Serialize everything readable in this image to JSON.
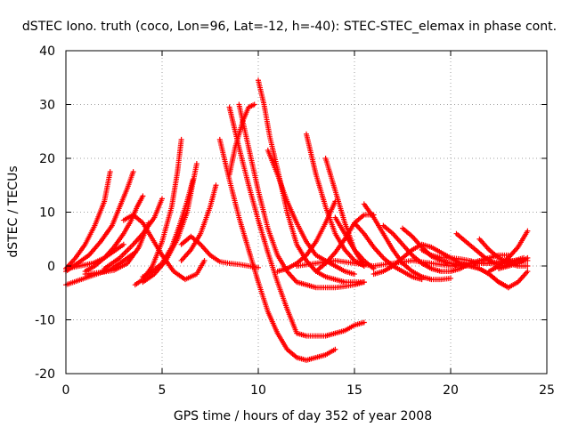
{
  "chart_data": {
    "type": "scatter",
    "title": "dSTEC Iono. truth (coco, Lon=96, Lat=-12, h=-40): STEC-STEC_elemax in phase cont.",
    "xlabel": "GPS time / hours of day 352 of year 2008",
    "ylabel": "dSTEC  / TECUs",
    "xlim": [
      0,
      25
    ],
    "ylim": [
      -20,
      40
    ],
    "xticks": [
      0,
      5,
      10,
      15,
      20,
      25
    ],
    "yticks": [
      -20,
      -10,
      0,
      10,
      20,
      30,
      40
    ],
    "grid": true,
    "marker": "plus",
    "color": "#ff0000",
    "series": [
      {
        "x": [
          0.0,
          0.5,
          1.0,
          1.5,
          2.0,
          2.3
        ],
        "y": [
          -0.5,
          1.5,
          4.0,
          7.5,
          12.0,
          17.5
        ]
      },
      {
        "x": [
          0.0,
          0.6,
          1.2,
          1.8,
          2.4,
          2.8,
          3.2,
          3.5
        ],
        "y": [
          -1.0,
          0.5,
          2.0,
          4.5,
          7.5,
          11.0,
          14.5,
          17.5
        ]
      },
      {
        "x": [
          0.0,
          0.7,
          1.4,
          2.0,
          2.6,
          3.0
        ],
        "y": [
          -0.5,
          0.0,
          0.5,
          1.5,
          3.0,
          4.0
        ]
      },
      {
        "x": [
          1.0,
          1.5,
          2.0,
          2.5,
          3.0,
          3.4,
          3.7,
          4.0
        ],
        "y": [
          -1.0,
          0.0,
          1.5,
          3.5,
          6.0,
          8.5,
          11.0,
          13.0
        ]
      },
      {
        "x": [
          1.0,
          1.8,
          2.5,
          3.2,
          3.8,
          4.3
        ],
        "y": [
          -1.5,
          -1.2,
          -0.8,
          0.5,
          3.5,
          8.0
        ]
      },
      {
        "x": [
          2.0,
          2.8,
          3.5,
          4.0,
          4.6,
          5.0
        ],
        "y": [
          -0.5,
          1.5,
          4.0,
          6.0,
          9.0,
          12.5
        ]
      },
      {
        "x": [
          3.6,
          4.0,
          4.5,
          5.0,
          5.5,
          5.8,
          6.0
        ],
        "y": [
          -3.5,
          -2.5,
          0.0,
          4.5,
          11.0,
          17.5,
          23.5
        ]
      },
      {
        "x": [
          4.0,
          4.5,
          5.0,
          5.5,
          5.9,
          6.3,
          6.6
        ],
        "y": [
          -2.0,
          -1.0,
          0.5,
          3.5,
          7.5,
          12.0,
          16.0
        ]
      },
      {
        "x": [
          4.0,
          4.6,
          5.2,
          5.8,
          6.3,
          6.8
        ],
        "y": [
          -3.0,
          -1.5,
          1.0,
          5.0,
          10.0,
          19.0
        ]
      },
      {
        "x": [
          3.0,
          3.5,
          4.0,
          4.5,
          5.0,
          5.6,
          6.2,
          6.8,
          7.2
        ],
        "y": [
          8.5,
          9.5,
          8.0,
          5.0,
          2.0,
          -1.0,
          -2.5,
          -1.5,
          1.0
        ]
      },
      {
        "x": [
          0.0,
          0.8,
          1.6,
          2.4,
          3.0,
          3.6
        ],
        "y": [
          -3.5,
          -2.5,
          -1.5,
          -0.5,
          1.0,
          2.5
        ]
      },
      {
        "x": [
          6.0,
          6.5,
          7.0,
          7.5,
          8.0,
          8.5,
          9.0,
          9.5,
          10.0
        ],
        "y": [
          4.0,
          5.5,
          4.0,
          2.0,
          0.8,
          0.5,
          0.3,
          0.0,
          -0.3
        ]
      },
      {
        "x": [
          6.0,
          6.5,
          7.0,
          7.5,
          7.8
        ],
        "y": [
          1.0,
          3.0,
          6.0,
          11.0,
          15.0
        ]
      },
      {
        "x": [
          8.0,
          8.5,
          9.0,
          9.5,
          10.0,
          10.5,
          11.0,
          11.5,
          12.0,
          12.5,
          13.0,
          13.5,
          14.0
        ],
        "y": [
          23.5,
          16.0,
          9.0,
          3.0,
          -3.0,
          -8.5,
          -12.5,
          -15.5,
          -17.0,
          -17.5,
          -17.0,
          -16.5,
          -15.5
        ]
      },
      {
        "x": [
          8.5,
          9.0,
          9.5,
          10.0,
          10.5,
          11.0,
          11.5,
          12.0,
          12.5,
          13.0,
          13.5,
          14.0,
          14.5,
          15.0,
          15.5
        ],
        "y": [
          29.5,
          22.0,
          15.0,
          8.5,
          2.5,
          -3.0,
          -8.0,
          -12.5,
          -13.0,
          -13.0,
          -13.0,
          -12.5,
          -12.0,
          -11.0,
          -10.5
        ]
      },
      {
        "x": [
          8.5,
          8.8,
          9.2,
          9.5,
          9.8
        ],
        "y": [
          17.0,
          22.0,
          27.0,
          29.5,
          30.0
        ]
      },
      {
        "x": [
          9.0,
          9.5,
          10.0,
          10.5,
          11.0,
          11.5,
          12.0,
          12.5,
          13.0,
          13.5,
          14.0,
          14.5,
          15.0,
          15.5
        ],
        "y": [
          30.0,
          22.0,
          14.0,
          7.0,
          2.0,
          -1.0,
          -3.0,
          -3.5,
          -4.0,
          -4.0,
          -4.0,
          -3.8,
          -3.5,
          -3.0
        ]
      },
      {
        "x": [
          10.0,
          10.3,
          10.6,
          11.0,
          11.5,
          12.0,
          12.5,
          13.0,
          13.5,
          14.0,
          14.5,
          15.0,
          15.5
        ],
        "y": [
          34.5,
          30.0,
          24.0,
          18.0,
          10.0,
          4.0,
          1.0,
          -1.0,
          -2.0,
          -2.5,
          -3.0,
          -3.0,
          -3.0
        ]
      },
      {
        "x": [
          10.5,
          11.0,
          11.5,
          12.0,
          12.5,
          13.0,
          13.5,
          14.0,
          14.5,
          15.0
        ],
        "y": [
          21.5,
          17.0,
          12.0,
          8.0,
          4.5,
          2.0,
          1.0,
          0.0,
          -1.0,
          -1.5
        ]
      },
      {
        "x": [
          11.0,
          11.5,
          12.0,
          12.5,
          13.0,
          13.5,
          14.0
        ],
        "y": [
          -1.0,
          -0.5,
          0.5,
          2.0,
          4.5,
          8.0,
          12.0
        ]
      },
      {
        "x": [
          12.5,
          13.0,
          13.5,
          14.0,
          14.5,
          15.0,
          15.5
        ],
        "y": [
          24.5,
          17.0,
          11.0,
          6.0,
          3.0,
          1.0,
          0.0
        ]
      },
      {
        "x": [
          13.0,
          13.5,
          14.0,
          14.5,
          15.0,
          15.5,
          16.0
        ],
        "y": [
          -1.0,
          0.5,
          2.5,
          5.0,
          8.0,
          9.5,
          9.5
        ]
      },
      {
        "x": [
          13.5,
          14.0,
          14.5,
          15.0,
          15.5
        ],
        "y": [
          20.0,
          14.0,
          8.0,
          3.0,
          0.0
        ]
      },
      {
        "x": [
          14.0,
          14.5,
          15.0,
          15.5,
          16.0
        ],
        "y": [
          9.0,
          6.0,
          3.0,
          1.0,
          -0.5
        ]
      },
      {
        "x": [
          15.0,
          15.5,
          16.0,
          16.5,
          17.0,
          17.5,
          18.0,
          18.5
        ],
        "y": [
          8.0,
          6.0,
          3.5,
          1.5,
          0.0,
          -1.0,
          -2.0,
          -2.5
        ]
      },
      {
        "x": [
          15.5,
          16.0,
          16.5,
          17.0,
          17.5,
          18.0,
          18.5,
          19.0,
          19.5,
          20.0
        ],
        "y": [
          11.5,
          9.0,
          6.0,
          3.0,
          0.5,
          -1.0,
          -2.0,
          -2.5,
          -2.5,
          -2.3
        ]
      },
      {
        "x": [
          16.5,
          17.0,
          17.5,
          18.0,
          18.5,
          19.0,
          19.5,
          20.0,
          20.5,
          21.0,
          21.5,
          22.0,
          22.5,
          23.0
        ],
        "y": [
          7.5,
          6.0,
          4.0,
          2.0,
          0.5,
          -0.5,
          -1.0,
          -1.0,
          -0.5,
          0.5,
          1.0,
          1.5,
          2.0,
          2.0
        ]
      },
      {
        "x": [
          17.5,
          18.0,
          18.5,
          19.0,
          19.5,
          20.0,
          20.5,
          21.0,
          21.5,
          22.0,
          22.5,
          23.0,
          23.5,
          24.0
        ],
        "y": [
          7.0,
          5.5,
          3.5,
          1.8,
          1.0,
          0.5,
          0.0,
          0.0,
          -0.5,
          -1.5,
          -3.0,
          -4.0,
          -3.0,
          -1.0
        ]
      },
      {
        "x": [
          16.0,
          16.5,
          17.0,
          17.5,
          18.0,
          18.5,
          19.0,
          19.5,
          20.0,
          20.5,
          21.0,
          21.5,
          22.0,
          22.5,
          23.0
        ],
        "y": [
          -1.5,
          -1.0,
          0.0,
          1.5,
          3.0,
          4.0,
          3.5,
          2.5,
          1.5,
          0.5,
          0.0,
          -0.5,
          -1.5,
          -3.0,
          -4.0
        ]
      },
      {
        "x": [
          18.5,
          19.0,
          19.5,
          20.0,
          20.5,
          21.0,
          21.5,
          22.0,
          22.5,
          23.0,
          23.5,
          24.0
        ],
        "y": [
          3.0,
          2.0,
          1.5,
          1.5,
          1.3,
          1.0,
          0.5,
          0.5,
          0.8,
          1.0,
          1.0,
          1.0
        ]
      },
      {
        "x": [
          20.3,
          20.8,
          21.3,
          21.8,
          22.3,
          22.8,
          23.3,
          23.8
        ],
        "y": [
          6.0,
          4.5,
          3.0,
          1.5,
          0.5,
          0.5,
          1.0,
          1.5
        ]
      },
      {
        "x": [
          21.5,
          22.0,
          22.5,
          23.0,
          23.5,
          24.0
        ],
        "y": [
          5.0,
          3.0,
          1.5,
          0.5,
          0.0,
          0.0
        ]
      },
      {
        "x": [
          22.0,
          22.5,
          23.0,
          23.5,
          24.0
        ],
        "y": [
          -1.0,
          0.0,
          1.5,
          3.5,
          6.5
        ]
      },
      {
        "x": [
          22.5,
          23.0,
          23.5,
          24.0
        ],
        "y": [
          -0.5,
          0.0,
          0.5,
          1.5
        ]
      },
      {
        "x": [
          12.0,
          13.0,
          14.0,
          15.0,
          16.0,
          17.0,
          18.0,
          19.0,
          20.0,
          21.0,
          22.0,
          23.0
        ],
        "y": [
          0.0,
          0.5,
          1.0,
          0.5,
          0.0,
          0.5,
          1.0,
          0.5,
          0.0,
          0.5,
          0.5,
          0.0
        ]
      }
    ]
  }
}
